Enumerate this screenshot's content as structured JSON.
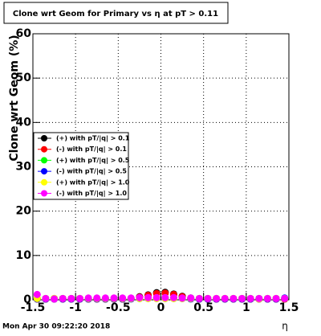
{
  "chart_data": {
    "type": "scatter",
    "title": "Clone wrt Geom for Primary vs   η at pT > 0.11",
    "x_label": "η",
    "y_label": "Clone wrt Geom (%)",
    "footer": "Mon Apr 30 09:22:20 2018",
    "grid": true,
    "legend": "left",
    "xlim": [
      -1.5,
      1.5
    ],
    "xticks": [
      -1.5,
      -1,
      -0.5,
      0,
      0.5,
      1,
      1.5
    ],
    "ylim": [
      0,
      60
    ],
    "yticks": [
      0,
      10,
      20,
      30,
      40,
      50,
      60
    ],
    "x": [
      -1.45,
      -1.35,
      -1.25,
      -1.15,
      -1.05,
      -0.95,
      -0.85,
      -0.75,
      -0.65,
      -0.55,
      -0.45,
      -0.35,
      -0.25,
      -0.15,
      -0.05,
      0.05,
      0.15,
      0.25,
      0.35,
      0.45,
      0.55,
      0.65,
      0.75,
      0.85,
      0.95,
      1.05,
      1.15,
      1.25,
      1.35,
      1.45
    ],
    "series": [
      {
        "name": "(+) with pT/|q| > 0.1",
        "color": "#000000",
        "values": [
          0.2,
          0.2,
          0.2,
          0.2,
          0.2,
          0.2,
          0.2,
          0.2,
          0.2,
          0.2,
          0.2,
          0.3,
          0.7,
          1.1,
          1.6,
          1.7,
          1.3,
          0.8,
          0.4,
          0.2,
          0.2,
          0.2,
          0.2,
          0.2,
          0.2,
          0.2,
          0.2,
          0.2,
          0.2,
          0.2
        ]
      },
      {
        "name": "(-) with pT/|q| > 0.1",
        "color": "#ff0000",
        "values": [
          0.2,
          0.2,
          0.2,
          0.2,
          0.2,
          0.2,
          0.2,
          0.2,
          0.2,
          0.2,
          0.2,
          0.3,
          0.6,
          1.0,
          1.4,
          1.5,
          1.2,
          0.7,
          0.3,
          0.2,
          0.2,
          0.2,
          0.2,
          0.2,
          0.2,
          0.2,
          0.2,
          0.2,
          0.2,
          0.2
        ]
      },
      {
        "name": "(+) with pT/|q| > 0.5",
        "color": "#00ff00",
        "values": [
          0.3,
          0.3,
          0.3,
          0.3,
          0.3,
          0.3,
          0.3,
          0.3,
          0.3,
          0.3,
          0.3,
          0.3,
          0.3,
          0.4,
          0.4,
          0.4,
          0.4,
          0.3,
          0.3,
          0.3,
          0.3,
          0.3,
          0.3,
          0.3,
          0.3,
          0.3,
          0.3,
          0.3,
          0.3,
          0.3
        ]
      },
      {
        "name": "(-) with pT/|q| > 0.5",
        "color": "#0000ff",
        "values": [
          0.2,
          0.2,
          0.2,
          0.2,
          0.2,
          0.2,
          0.2,
          0.2,
          0.2,
          0.2,
          0.2,
          0.2,
          0.3,
          0.3,
          0.3,
          0.3,
          0.3,
          0.3,
          0.2,
          0.2,
          0.2,
          0.2,
          0.2,
          0.2,
          0.2,
          0.2,
          0.2,
          0.2,
          0.2,
          0.4
        ]
      },
      {
        "name": "(+) with pT/|q| > 1.0",
        "color": "#ffff00",
        "values": [
          0.3,
          0.3,
          0.3,
          0.3,
          0.3,
          0.3,
          0.3,
          0.3,
          0.3,
          0.3,
          0.3,
          0.3,
          0.3,
          0.3,
          0.3,
          0.3,
          0.3,
          0.3,
          0.3,
          0.3,
          0.3,
          0.3,
          0.3,
          0.3,
          0.3,
          0.3,
          0.2,
          0.3,
          0.3,
          0.3
        ]
      },
      {
        "name": "(-) with pT/|q| > 1.0",
        "color": "#ff00ff",
        "values": [
          1.2,
          0.3,
          0.2,
          0.3,
          0.3,
          0.3,
          0.4,
          0.4,
          0.4,
          0.4,
          0.4,
          0.4,
          0.5,
          0.5,
          0.5,
          0.5,
          0.5,
          0.4,
          0.4,
          0.3,
          0.3,
          0.3,
          0.3,
          0.3,
          0.3,
          0.3,
          0.3,
          0.3,
          0.3,
          0.3
        ]
      }
    ]
  }
}
